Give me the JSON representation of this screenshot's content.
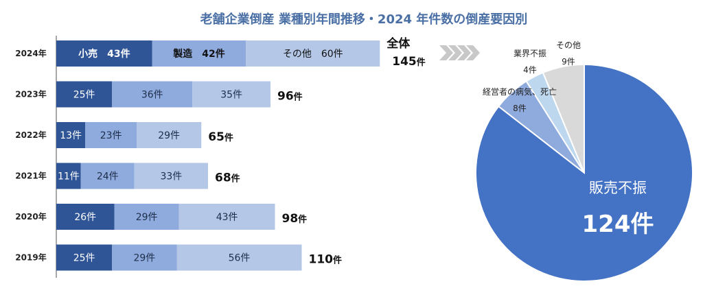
{
  "chart_data": [
    {
      "type": "bar",
      "orientation": "horizontal",
      "stacked": true,
      "title": "老舗企業倒産 業種別年間推移・2024 年件数の倒産要因別",
      "categories": [
        "2024年",
        "2023年",
        "2022年",
        "2021年",
        "2020年",
        "2019年"
      ],
      "series": [
        {
          "name": "小売",
          "values": [
            43,
            25,
            13,
            11,
            26,
            25
          ],
          "color": "#2f5597"
        },
        {
          "name": "製造",
          "values": [
            42,
            36,
            23,
            24,
            29,
            29
          ],
          "color": "#8faadc"
        },
        {
          "name": "その他",
          "values": [
            60,
            35,
            29,
            33,
            43,
            56
          ],
          "color": "#b4c7e7"
        }
      ],
      "totals": [
        145,
        96,
        65,
        68,
        98,
        110
      ],
      "segment_labels": [
        [
          "小売　43件",
          "製造　42件",
          "その他　60件"
        ],
        [
          "25件",
          "36件",
          "35件"
        ],
        [
          "13件",
          "23件",
          "29件"
        ],
        [
          "11件",
          "24件",
          "33件"
        ],
        [
          "26件",
          "29件",
          "43件"
        ],
        [
          "25件",
          "29件",
          "56件"
        ]
      ],
      "total_labels": [
        {
          "prefix": "全体",
          "num": "145",
          "unit": "件"
        },
        {
          "prefix": "",
          "num": "96",
          "unit": "件"
        },
        {
          "prefix": "",
          "num": "65",
          "unit": "件"
        },
        {
          "prefix": "",
          "num": "68",
          "unit": "件"
        },
        {
          "prefix": "",
          "num": "98",
          "unit": "件"
        },
        {
          "prefix": "",
          "num": "110",
          "unit": "件"
        }
      ],
      "grid": false
    },
    {
      "type": "pie",
      "slices": [
        {
          "label": "販売不振",
          "value": 124,
          "value_label": "124件",
          "color": "#4472c4"
        },
        {
          "label": "経営者の病気、死亡",
          "value": 8,
          "value_label": "8件",
          "color": "#8faadc"
        },
        {
          "label": "業界不振",
          "value": 4,
          "value_label": "4件",
          "color": "#bdd7ee"
        },
        {
          "label": "その他",
          "value": 9,
          "value_label": "9件",
          "color": "#d9d9d9"
        }
      ]
    }
  ],
  "colors": {
    "title": "#4a6fa5",
    "arrow": "#c8c8c8"
  }
}
